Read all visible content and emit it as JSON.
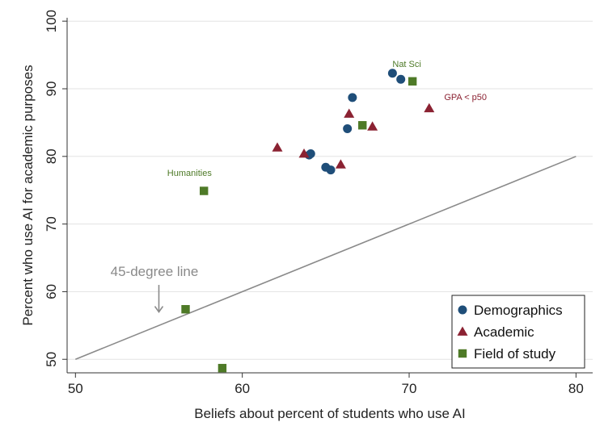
{
  "chart_data": {
    "type": "scatter",
    "xlabel": "Beliefs about percent of students who use AI",
    "ylabel": "Percent who use AI for academic purposes",
    "xlim": [
      49.5,
      81
    ],
    "ylim": [
      48,
      100.5
    ],
    "xticks": [
      "50",
      "60",
      "70",
      "80"
    ],
    "yticks": [
      "50",
      "60",
      "70",
      "80",
      "90",
      "100"
    ],
    "grid": "horizontal",
    "legend_position": "bottom-right",
    "reference_line": {
      "x": [
        50,
        80
      ],
      "y": [
        50,
        80
      ],
      "color": "#8a8a8a"
    },
    "series": [
      {
        "name": "Demographics",
        "marker": "circle",
        "color": "#1f4e79",
        "points": [
          [
            64.1,
            80.4
          ],
          [
            64.0,
            80.2
          ],
          [
            65.0,
            78.4
          ],
          [
            65.3,
            78.0
          ],
          [
            66.3,
            84.1
          ],
          [
            66.6,
            88.7
          ],
          [
            69.0,
            92.3
          ],
          [
            69.5,
            91.4
          ]
        ]
      },
      {
        "name": "Academic",
        "marker": "triangle",
        "color": "#8b2232",
        "points": [
          [
            62.1,
            81.3
          ],
          [
            63.7,
            80.4
          ],
          [
            65.9,
            78.8
          ],
          [
            66.4,
            86.3
          ],
          [
            67.8,
            84.4
          ],
          [
            71.2,
            87.1
          ]
        ]
      },
      {
        "name": "Field of study",
        "marker": "square",
        "color": "#4e7a27",
        "points": [
          [
            57.7,
            74.9
          ],
          [
            56.6,
            57.4
          ],
          [
            58.8,
            48.7
          ],
          [
            67.2,
            84.6
          ],
          [
            70.2,
            91.1
          ]
        ]
      }
    ],
    "annotations": [
      {
        "text": "Nat Sci",
        "x": 69.0,
        "y": 93.2,
        "color": "#4e7a27"
      },
      {
        "text": "GPA < p50",
        "x": 72.1,
        "y": 88.3,
        "color": "#8b2232"
      },
      {
        "text": "Humanities",
        "x": 55.5,
        "y": 77.1,
        "color": "#4e7a27"
      },
      {
        "text": "45-degree line",
        "x": 52.1,
        "y": 62.3,
        "color": "#8a8a8a",
        "large": true
      }
    ],
    "arrow": {
      "x": 55.0,
      "y_from": 61.0,
      "y_to": 57.0,
      "color": "#8a8a8a"
    }
  }
}
